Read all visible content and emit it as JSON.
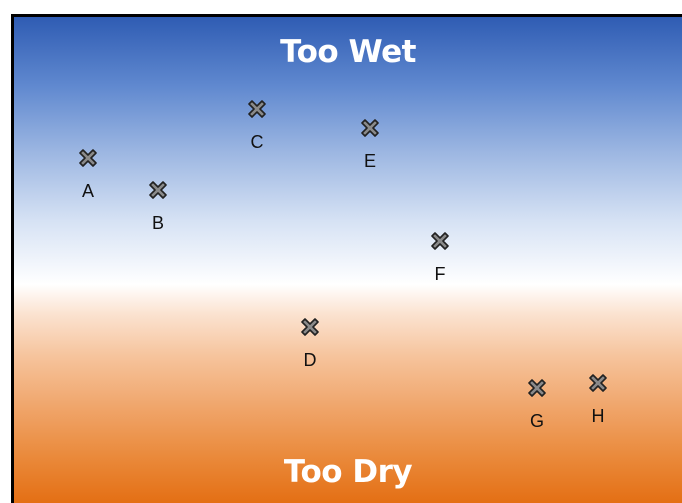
{
  "title_top": "Too Wet",
  "title_bottom": "Too Dry",
  "marker_icon": "x-mark-icon",
  "colors": {
    "top": "#2f5cb3",
    "middle": "#ffffff",
    "bottom": "#e46f14",
    "marker_fill": "#8a8a8a",
    "marker_stroke": "#222222"
  },
  "markers": [
    {
      "label": "A"
    },
    {
      "label": "B"
    },
    {
      "label": "C"
    },
    {
      "label": "D"
    },
    {
      "label": "E"
    },
    {
      "label": "F"
    },
    {
      "label": "G"
    },
    {
      "label": "H"
    }
  ]
}
